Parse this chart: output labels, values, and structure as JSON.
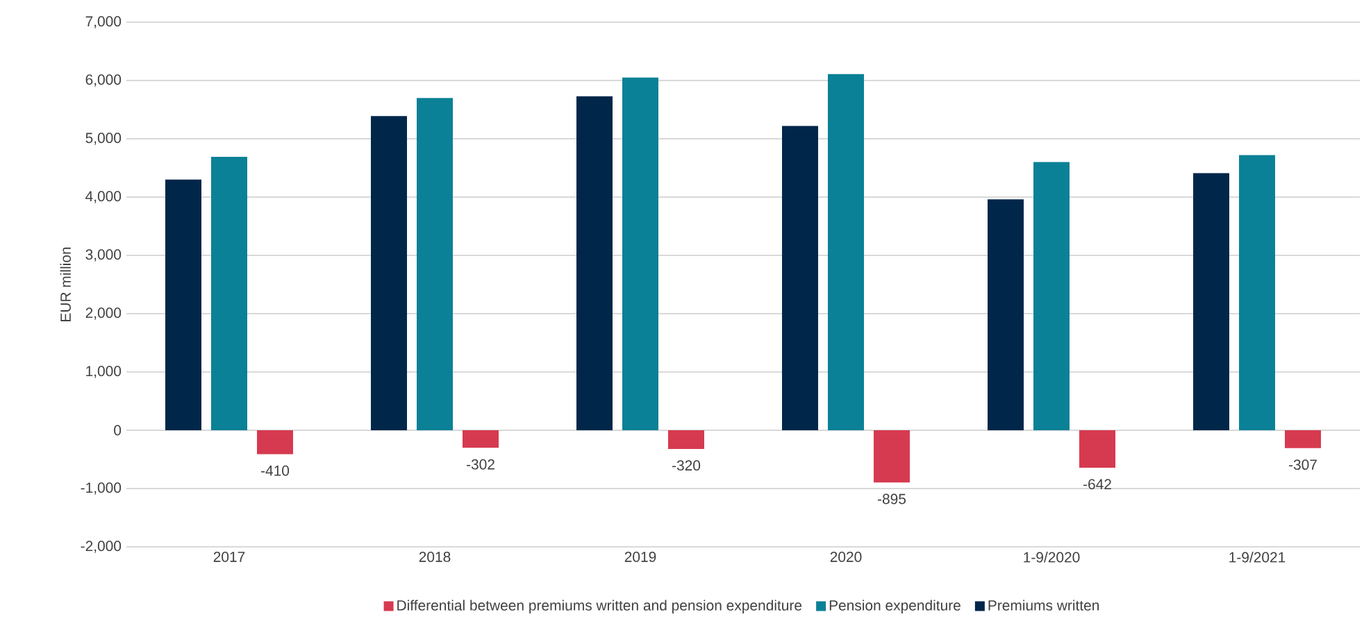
{
  "chart_data": {
    "type": "bar",
    "ylabel": "EUR million",
    "categories": [
      "2017",
      "2018",
      "2019",
      "2020",
      "1-9/2020",
      "1-9/2021"
    ],
    "series": [
      {
        "name": "Premiums written",
        "color": "#002649",
        "values": [
          4300,
          5390,
          5730,
          5220,
          3960,
          4410
        ]
      },
      {
        "name": "Pension expenditure",
        "color": "#0a8196",
        "values": [
          4690,
          5700,
          6050,
          6110,
          4600,
          4720
        ]
      },
      {
        "name": "Differential between premiums written and pension expenditure",
        "color": "#d63a50",
        "values": [
          -410,
          -302,
          -320,
          -895,
          -642,
          -307
        ],
        "value_labels": [
          "-410",
          "-302",
          "-320",
          "-895",
          "-642",
          "-307"
        ]
      }
    ],
    "ylim": [
      -2000,
      7000
    ],
    "yticks": [
      {
        "value": -2000,
        "label": "-2,000"
      },
      {
        "value": -1000,
        "label": "-1,000"
      },
      0,
      {
        "value": 1000,
        "label": "1,000"
      },
      {
        "value": 2000,
        "label": "2,000"
      },
      {
        "value": 3000,
        "label": "3,000"
      },
      {
        "value": 4000,
        "label": "4,000"
      },
      {
        "value": 5000,
        "label": "5,000"
      },
      {
        "value": 6000,
        "label": "6,000"
      },
      {
        "value": 7000,
        "label": "7,000"
      }
    ],
    "grid": "y",
    "legend": "bottom"
  }
}
